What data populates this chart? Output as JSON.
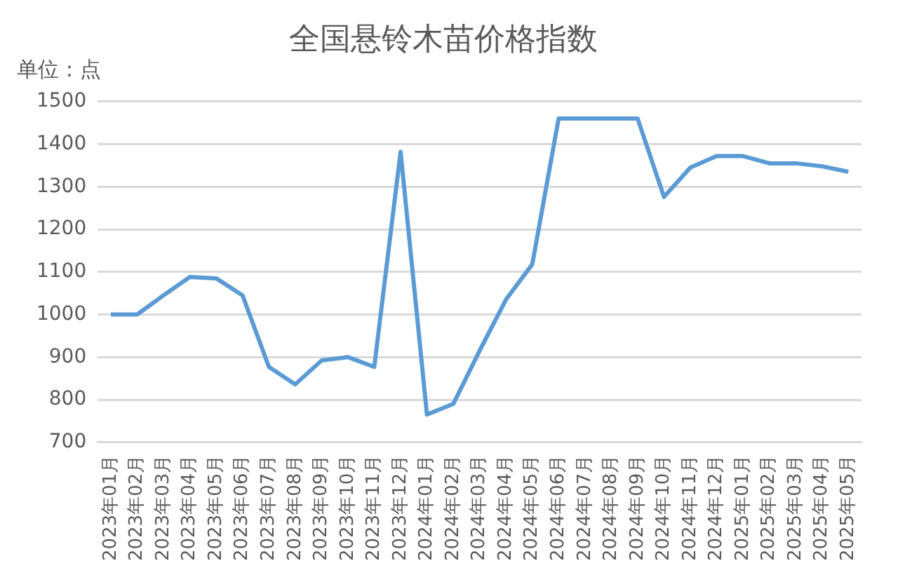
{
  "chart_data": {
    "type": "line",
    "title": "全国悬铃木苗价格指数",
    "ylabel": "单位：点",
    "categories": [
      "2023年01月",
      "2023年02月",
      "2023年03月",
      "2023年04月",
      "2023年05月",
      "2023年06月",
      "2023年07月",
      "2023年08月",
      "2023年09月",
      "2023年10月",
      "2023年11月",
      "2023年12月",
      "2024年01月",
      "2024年02月",
      "2024年03月",
      "2024年04月",
      "2024年05月",
      "2024年06月",
      "2024年07月",
      "2024年08月",
      "2024年09月",
      "2024年10月",
      "2024年11月",
      "2024年12月",
      "2025年01月",
      "2025年02月",
      "2025年03月",
      "2025年04月",
      "2025年05月"
    ],
    "series": [
      {
        "color": "#5b9bd5",
        "values": [
          1000,
          1000,
          1045,
          1088,
          1085,
          1045,
          877,
          836,
          892,
          900,
          877,
          1382,
          765,
          790,
          915,
          1035,
          1118,
          1460,
          1460,
          1460,
          1460,
          1276,
          1345,
          1372,
          1372,
          1355,
          1355,
          1348,
          1335
        ]
      }
    ],
    "ylim": [
      700,
      1500
    ],
    "yticks": [
      700,
      800,
      900,
      1000,
      1100,
      1200,
      1300,
      1400,
      1500
    ],
    "grid": "y",
    "legend": false,
    "marker": "none",
    "line_style": "solid"
  }
}
